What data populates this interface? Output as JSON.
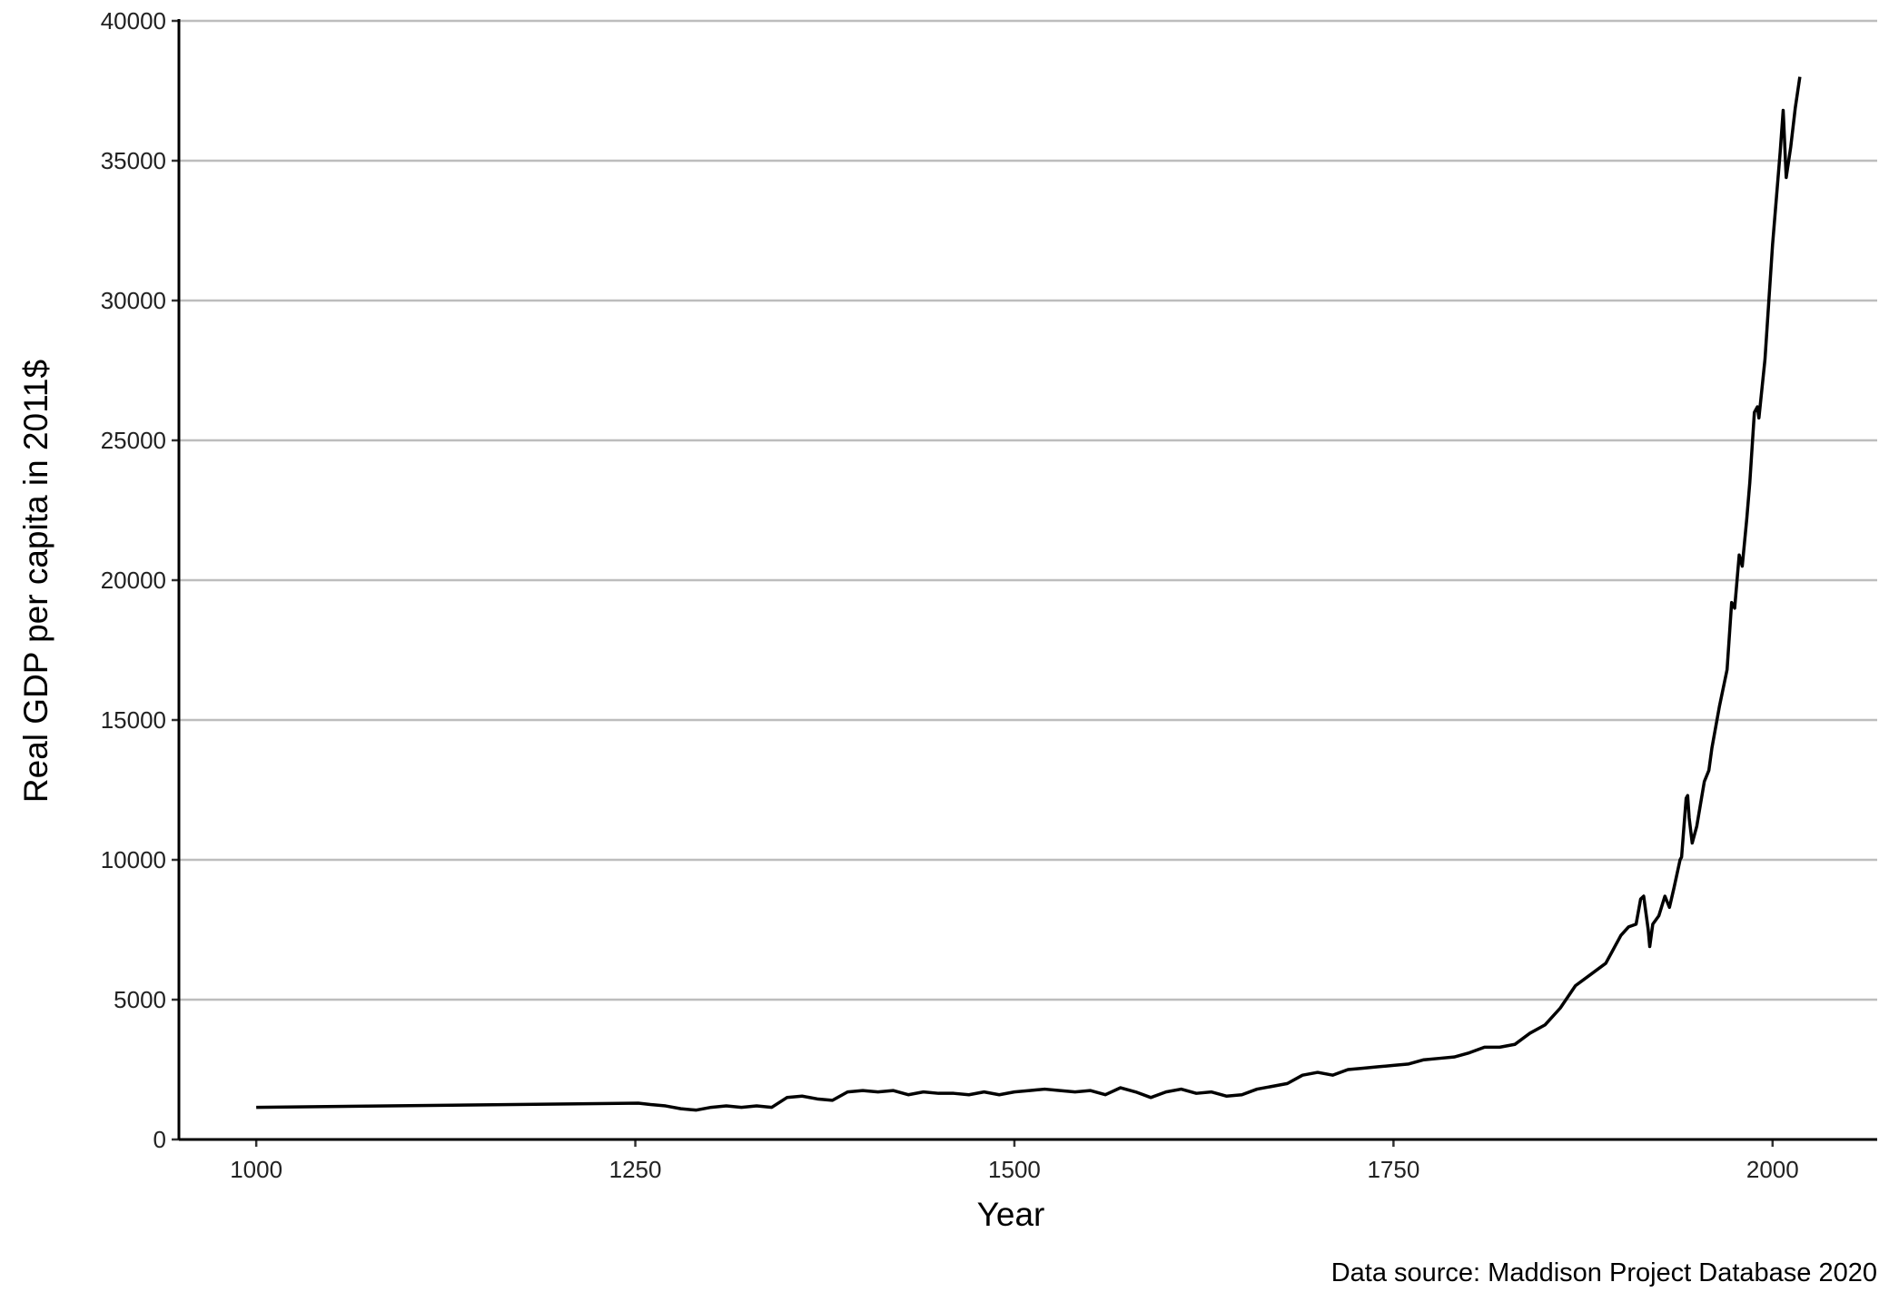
{
  "chart_data": {
    "type": "line",
    "x_label": "Year",
    "y_label": "Real GDP per capita in 2011$",
    "caption": "Data source: Maddison Project Database 2020",
    "x": [
      1000,
      1252,
      1260,
      1270,
      1280,
      1290,
      1300,
      1310,
      1320,
      1330,
      1340,
      1350,
      1360,
      1370,
      1380,
      1390,
      1400,
      1410,
      1420,
      1430,
      1440,
      1450,
      1460,
      1470,
      1480,
      1490,
      1500,
      1510,
      1520,
      1530,
      1540,
      1550,
      1560,
      1570,
      1580,
      1590,
      1600,
      1610,
      1620,
      1630,
      1640,
      1650,
      1660,
      1670,
      1680,
      1690,
      1700,
      1710,
      1720,
      1730,
      1740,
      1750,
      1760,
      1770,
      1780,
      1790,
      1800,
      1810,
      1820,
      1830,
      1840,
      1850,
      1860,
      1870,
      1880,
      1890,
      1900,
      1905,
      1910,
      1913,
      1915,
      1918,
      1919,
      1921,
      1925,
      1929,
      1932,
      1935,
      1939,
      1940,
      1943,
      1944,
      1945,
      1947,
      1950,
      1955,
      1958,
      1960,
      1965,
      1970,
      1973,
      1975,
      1978,
      1980,
      1983,
      1985,
      1988,
      1990,
      1991,
      1995,
      2000,
      2005,
      2007,
      2009,
      2012,
      2015,
      2018
    ],
    "series": [
      {
        "color": "#000000",
        "values": [
          1150,
          1300,
          1250,
          1200,
          1100,
          1050,
          1150,
          1200,
          1150,
          1200,
          1150,
          1500,
          1550,
          1450,
          1400,
          1700,
          1750,
          1700,
          1750,
          1600,
          1700,
          1650,
          1650,
          1600,
          1700,
          1600,
          1700,
          1750,
          1800,
          1750,
          1700,
          1750,
          1600,
          1850,
          1700,
          1500,
          1700,
          1800,
          1650,
          1700,
          1550,
          1600,
          1800,
          1900,
          2000,
          2300,
          2400,
          2300,
          2500,
          2550,
          2600,
          2650,
          2700,
          2850,
          2900,
          2950,
          3100,
          3300,
          3300,
          3400,
          3800,
          4100,
          4700,
          5500,
          5900,
          6300,
          7300,
          7600,
          7700,
          8600,
          8700,
          7500,
          6900,
          7700,
          8000,
          8700,
          8300,
          9000,
          10000,
          10100,
          12200,
          12300,
          11500,
          10600,
          11200,
          12800,
          13200,
          14000,
          15500,
          16800,
          19200,
          19000,
          20900,
          20500,
          22200,
          23500,
          26000,
          26200,
          25800,
          27900,
          32000,
          35300,
          36800,
          34400,
          35500,
          36900,
          38000
        ]
      }
    ],
    "xlim": [
      949,
      2069
    ],
    "xticks": [
      1000,
      1250,
      1500,
      1750,
      2000
    ],
    "ylim": [
      0,
      40000
    ],
    "yticks": [
      0,
      5000,
      10000,
      15000,
      20000,
      25000,
      30000,
      35000,
      40000
    ],
    "grid": "y"
  }
}
